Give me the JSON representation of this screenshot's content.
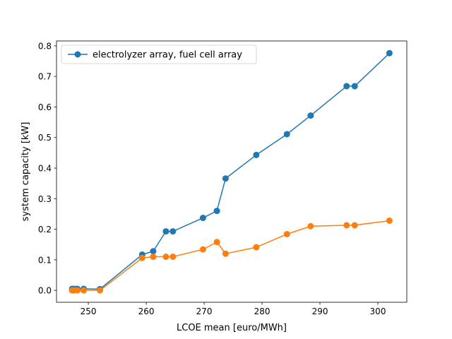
{
  "chart_data": {
    "type": "line",
    "title": "",
    "xlabel": "LCOE mean [euro/MWh]",
    "ylabel": "system capacity [kW]",
    "xlim": [
      244.5,
      305
    ],
    "ylim": [
      -0.039,
      0.816
    ],
    "xticks": [
      250,
      260,
      270,
      280,
      290,
      300
    ],
    "yticks": [
      0.0,
      0.1,
      0.2,
      0.3,
      0.4,
      0.5,
      0.6,
      0.7,
      0.8
    ],
    "xtick_labels": [
      "250",
      "260",
      "270",
      "280",
      "290",
      "300"
    ],
    "ytick_labels": [
      "0.0",
      "0.1",
      "0.2",
      "0.3",
      "0.4",
      "0.5",
      "0.6",
      "0.7",
      "0.8"
    ],
    "grid": false,
    "legend": {
      "position": "top-left",
      "label": "electrolyzer array, fuel cell array"
    },
    "series": [
      {
        "color": "#1f77b4",
        "marker": "circle",
        "x": [
          247.2,
          247.6,
          248.1,
          249.2,
          252.0,
          259.3,
          261.2,
          263.4,
          264.6,
          269.8,
          272.2,
          273.7,
          279.0,
          284.3,
          288.4,
          294.6,
          296.0,
          302.0
        ],
        "y": [
          0.005,
          0.005,
          0.005,
          0.005,
          0.004,
          0.117,
          0.128,
          0.193,
          0.193,
          0.237,
          0.26,
          0.366,
          0.443,
          0.511,
          0.572,
          0.668,
          0.668,
          0.776
        ]
      },
      {
        "color": "#ff7f0e",
        "marker": "circle",
        "x": [
          247.2,
          247.6,
          248.1,
          249.2,
          252.0,
          259.3,
          261.2,
          263.4,
          264.6,
          269.8,
          272.2,
          273.7,
          279.0,
          284.3,
          288.4,
          294.6,
          296.0,
          302.0
        ],
        "y": [
          0.0,
          0.0,
          0.0,
          0.0,
          0.0,
          0.106,
          0.11,
          0.11,
          0.11,
          0.134,
          0.158,
          0.12,
          0.141,
          0.184,
          0.21,
          0.213,
          0.213,
          0.228
        ]
      }
    ]
  }
}
